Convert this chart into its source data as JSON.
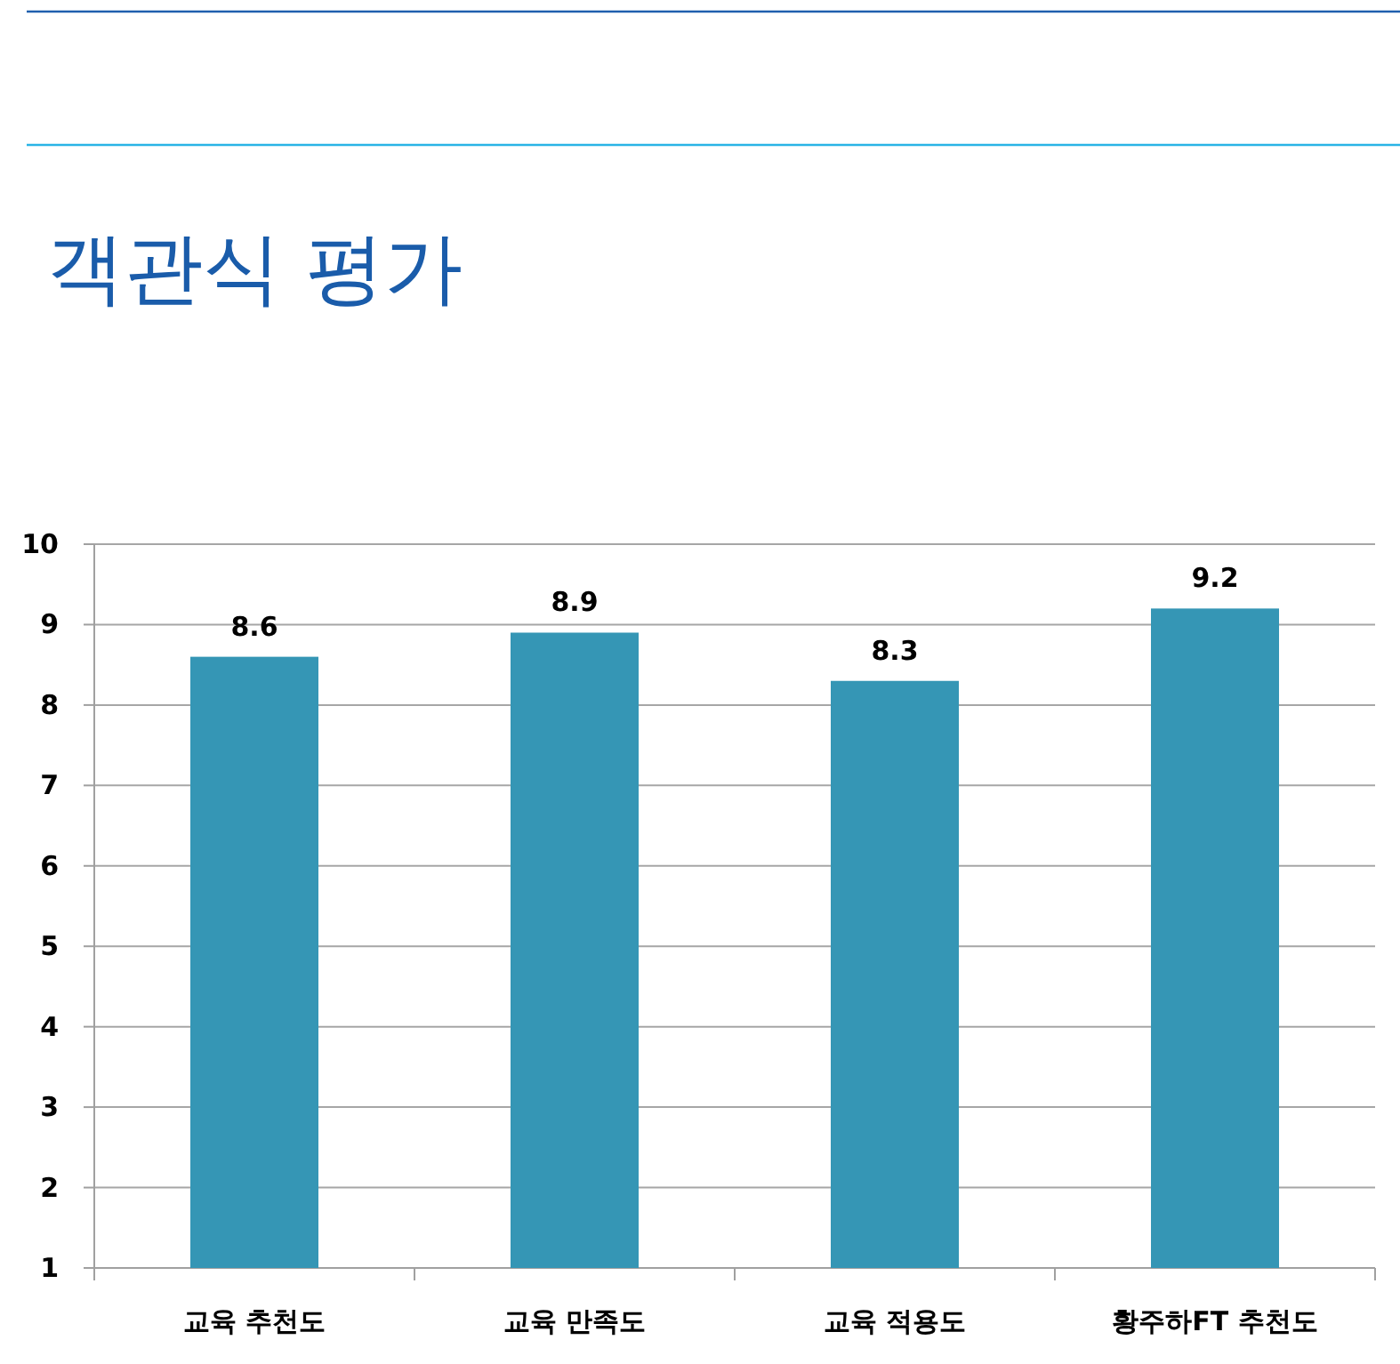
{
  "chart_data": {
    "type": "bar",
    "title": "객관식 평가",
    "categories": [
      "교육 추천도",
      "교육 만족도",
      "교육 적용도",
      "황주하FT 추천도"
    ],
    "values": [
      8.6,
      8.9,
      8.3,
      9.2
    ],
    "color": "#3596b5",
    "ylim": [
      1,
      10
    ],
    "yticks": [
      1,
      2,
      3,
      4,
      5,
      6,
      7,
      8,
      9,
      10
    ],
    "grid": "y",
    "data_labels": true
  }
}
